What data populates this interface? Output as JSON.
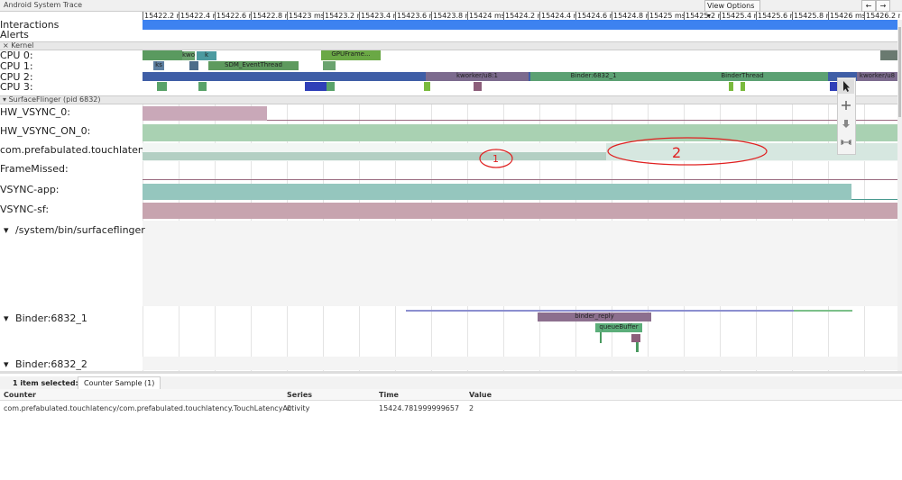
{
  "window": {
    "title": "Android System Trace",
    "view_options": "View Options",
    "back": "←",
    "forward": "→"
  },
  "timeline": {
    "ticks": [
      "15422.2 ms",
      "15422.4 ms",
      "15422.6 ms",
      "15422.8 ms",
      "15423 ms",
      "15423.2 ms",
      "15423.4 ms",
      "15423.6 ms",
      "15423.8 ms",
      "15424 ms",
      "15424.2 ms",
      "15424.4 ms",
      "15424.6 ms",
      "15424.8 ms",
      "15425 ms",
      "15425.2 ms",
      "15425.4 ms",
      "15425.6 ms",
      "15425.8 ms",
      "15426 ms",
      "15426.2 ms"
    ]
  },
  "tracks": {
    "interactions": "Interactions",
    "alerts": "Alerts",
    "kernel": "Kernel",
    "cpu": [
      "CPU 0:",
      "CPU 1:",
      "CPU 2:",
      "CPU 3:"
    ],
    "surfaceflinger": "SurfaceFlinger (pid 6832)",
    "counters": [
      "HW_VSYNC_0:",
      "HW_VSYNC_ON_0:",
      "com.prefabulated.touchlatenc...",
      "FrameMissed:",
      "VSYNC-app:",
      "VSYNC-sf:"
    ],
    "threads": [
      "/system/bin/surfaceflinger",
      "Binder:6832_1",
      "Binder:6832_2"
    ]
  },
  "slices": [
    "kwo",
    "k",
    "ks",
    "SDM_EventThread",
    "GPUFrame...",
    "kworker/u8:1",
    "Binder:6832_1",
    "BinderThread",
    "kworker/u8",
    "binder_reply",
    "queueBuffer"
  ],
  "annotations": [
    "1",
    "2"
  ],
  "panel": {
    "selection": "1 item selected:",
    "tab": "Counter Sample (1)",
    "columns": [
      "Counter",
      "Series",
      "Time",
      "Value"
    ],
    "row": [
      "com.prefabulated.touchlatency/com.prefabulated.touchlatency.TouchLatencyActivity",
      "0",
      "15424.781999999657",
      "2"
    ]
  }
}
